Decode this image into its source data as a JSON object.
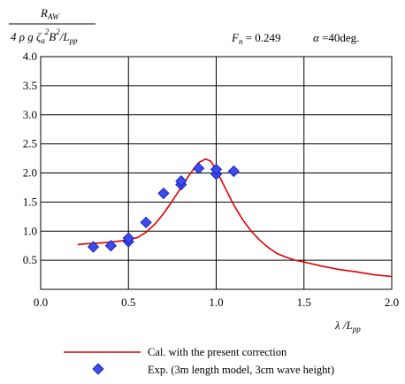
{
  "chart_data": {
    "type": "line",
    "ylabel_numerator": "R_AW",
    "ylabel_denominator": "4 ρ g ζ_a² B²/L_pp",
    "annotation_fn": "F_n = 0.249",
    "annotation_alpha": "α =40deg.",
    "xlabel": "λ /L_pp",
    "xlim": [
      0.0,
      2.0
    ],
    "ylim": [
      0.0,
      4.0
    ],
    "xticks": [
      "0.0",
      "0.5",
      "1.0",
      "1.5",
      "2.0"
    ],
    "yticks": [
      "0.5",
      "1.0",
      "1.5",
      "2.0",
      "2.5",
      "3.0",
      "3.5",
      "4.0"
    ],
    "grid": true,
    "series": [
      {
        "name": "Cal. with the present correction",
        "kind": "line",
        "color": "#e00000",
        "points": [
          [
            0.21,
            0.77
          ],
          [
            0.25,
            0.78
          ],
          [
            0.3,
            0.79
          ],
          [
            0.35,
            0.8
          ],
          [
            0.4,
            0.81
          ],
          [
            0.45,
            0.83
          ],
          [
            0.5,
            0.85
          ],
          [
            0.55,
            0.89
          ],
          [
            0.6,
            0.98
          ],
          [
            0.65,
            1.12
          ],
          [
            0.7,
            1.3
          ],
          [
            0.75,
            1.52
          ],
          [
            0.8,
            1.75
          ],
          [
            0.85,
            1.98
          ],
          [
            0.9,
            2.18
          ],
          [
            0.94,
            2.24
          ],
          [
            0.97,
            2.2
          ],
          [
            1.0,
            2.05
          ],
          [
            1.05,
            1.75
          ],
          [
            1.1,
            1.45
          ],
          [
            1.15,
            1.2
          ],
          [
            1.2,
            1.0
          ],
          [
            1.25,
            0.84
          ],
          [
            1.3,
            0.71
          ],
          [
            1.35,
            0.61
          ],
          [
            1.4,
            0.55
          ],
          [
            1.45,
            0.5
          ],
          [
            1.5,
            0.47
          ],
          [
            1.6,
            0.4
          ],
          [
            1.7,
            0.34
          ],
          [
            1.8,
            0.3
          ],
          [
            1.9,
            0.25
          ],
          [
            2.0,
            0.22
          ]
        ]
      },
      {
        "name": "Exp. (3m length model, 3cm wave height)",
        "kind": "scatter",
        "color": "#3a4cf0",
        "points": [
          [
            0.3,
            0.73
          ],
          [
            0.4,
            0.75
          ],
          [
            0.5,
            0.82
          ],
          [
            0.5,
            0.88
          ],
          [
            0.6,
            1.15
          ],
          [
            0.7,
            1.65
          ],
          [
            0.8,
            1.8
          ],
          [
            0.8,
            1.86
          ],
          [
            0.9,
            2.08
          ],
          [
            1.0,
            1.98
          ],
          [
            1.0,
            2.06
          ],
          [
            1.1,
            2.03
          ]
        ]
      }
    ]
  }
}
